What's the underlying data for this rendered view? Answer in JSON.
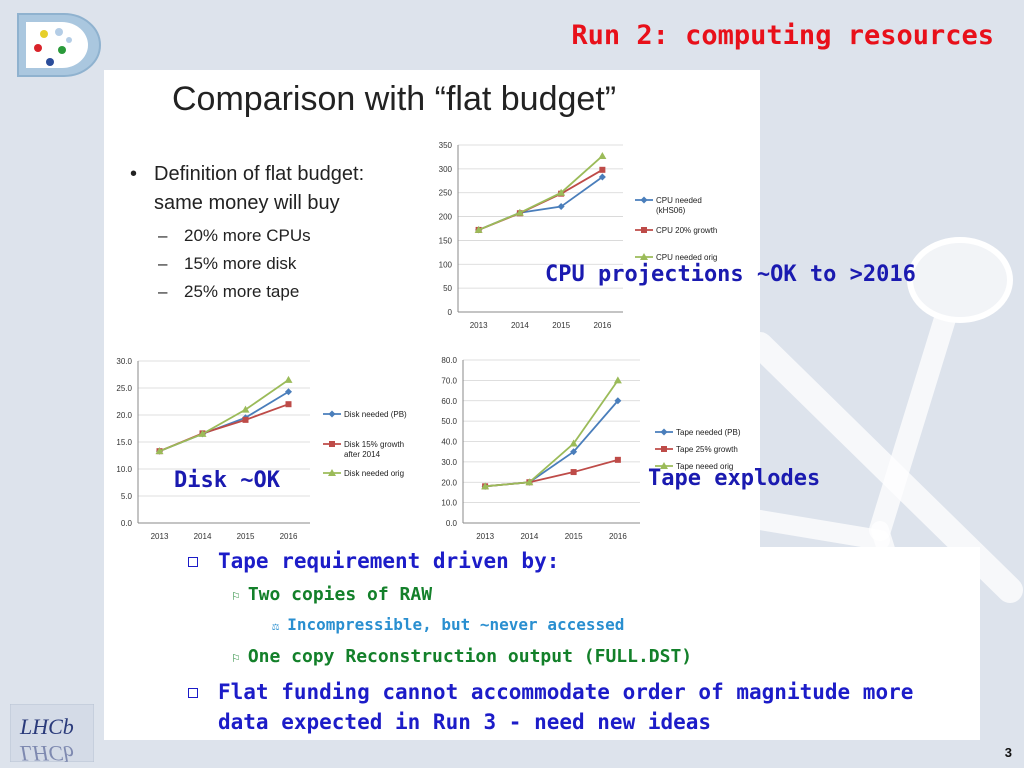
{
  "slide": {
    "title": "Run 2: computing resources",
    "page_number": "3"
  },
  "panel": {
    "title": "Comparison with “flat budget”",
    "definition": "Definition of flat budget: same money will buy",
    "items": [
      "20% more CPUs",
      "15% more disk",
      "25% more tape"
    ]
  },
  "annotations": {
    "cpu": "CPU projections ~OK to >2016",
    "disk": "Disk ~OK",
    "tape": "Tape explodes"
  },
  "bullets": {
    "b1": "Tape requirement driven by:",
    "b1_1": "Two copies of RAW",
    "b1_1_1": "Incompressible, but ~never accessed",
    "b1_2": "One copy Reconstruction output (FULL.DST)",
    "b2": "Flat funding cannot accommodate order of magnitude more data expected in Run 3 - need new ideas"
  },
  "colors": {
    "title_red": "#e8101a",
    "annotation_blue": "#1a1ab0",
    "bullet_blue": "#1c1cc8",
    "bullet_green": "#13802a",
    "bullet_lightblue": "#2a8fd0",
    "series_blue": "#4a7ebb",
    "series_red": "#be4b48",
    "series_green": "#9bbb59"
  },
  "chart_data": [
    {
      "id": "cpu",
      "type": "line",
      "categories": [
        "2013",
        "2014",
        "2015",
        "2016"
      ],
      "series": [
        {
          "name": "CPU needed (kHS06)",
          "legend": [
            "CPU needed",
            "(kHS06)"
          ],
          "color": "#4a7ebb",
          "marker": "diamond",
          "values": [
            172,
            208,
            221,
            283
          ]
        },
        {
          "name": "CPU 20% growth",
          "legend": [
            "CPU 20% growth"
          ],
          "color": "#be4b48",
          "marker": "square",
          "values": [
            172,
            207,
            248,
            298
          ]
        },
        {
          "name": "CPU needed orig",
          "legend": [
            "CPU needed orig"
          ],
          "color": "#9bbb59",
          "marker": "triangle",
          "values": [
            172,
            208,
            250,
            327
          ]
        }
      ],
      "ylim": [
        0,
        350
      ],
      "yticks": [
        "0",
        "50",
        "100",
        "150",
        "200",
        "250",
        "300",
        "350"
      ],
      "legend_position": "right",
      "grid": true
    },
    {
      "id": "disk",
      "type": "line",
      "categories": [
        "2013",
        "2014",
        "2015",
        "2016"
      ],
      "series": [
        {
          "name": "Disk needed (PB)",
          "legend": [
            "Disk needed (PB)"
          ],
          "color": "#4a7ebb",
          "marker": "diamond",
          "values": [
            13.3,
            16.5,
            19.5,
            24.3
          ]
        },
        {
          "name": "Disk 15% growth after 2014",
          "legend": [
            "Disk 15% growth",
            "after 2014"
          ],
          "color": "#be4b48",
          "marker": "square",
          "values": [
            13.3,
            16.6,
            19.1,
            22.0
          ]
        },
        {
          "name": "Disk needed orig",
          "legend": [
            "Disk needed orig"
          ],
          "color": "#9bbb59",
          "marker": "triangle",
          "values": [
            13.3,
            16.5,
            21.0,
            26.5
          ]
        }
      ],
      "ylim": [
        0,
        30
      ],
      "yticks": [
        "0.0",
        "5.0",
        "10.0",
        "15.0",
        "20.0",
        "25.0",
        "30.0"
      ],
      "legend_position": "right",
      "grid": true
    },
    {
      "id": "tape",
      "type": "line",
      "categories": [
        "2013",
        "2014",
        "2015",
        "2016"
      ],
      "series": [
        {
          "name": "Tape needed (PB)",
          "legend": [
            "Tape needed (PB)"
          ],
          "color": "#4a7ebb",
          "marker": "diamond",
          "values": [
            18,
            20,
            35,
            60
          ]
        },
        {
          "name": "Tape 25% growth",
          "legend": [
            "Tape 25% growth"
          ],
          "color": "#be4b48",
          "marker": "square",
          "values": [
            18,
            20,
            25,
            31
          ]
        },
        {
          "name": "Tape neeed orig",
          "legend": [
            "Tape neeed orig"
          ],
          "color": "#9bbb59",
          "marker": "triangle",
          "values": [
            18,
            20,
            39,
            70
          ]
        }
      ],
      "ylim": [
        0,
        80
      ],
      "yticks": [
        "0.0",
        "10.0",
        "20.0",
        "30.0",
        "40.0",
        "50.0",
        "60.0",
        "70.0",
        "80.0"
      ],
      "legend_position": "right",
      "grid": true
    }
  ]
}
